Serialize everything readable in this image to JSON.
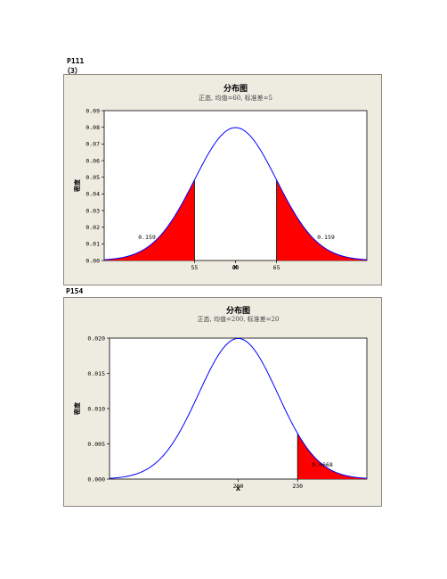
{
  "page": {
    "label_p111": "P111",
    "label_3": "（3）",
    "label_p154": "P154"
  },
  "colors": {
    "curve": "#0000ff",
    "fill": "#ff0000",
    "panel": "#eeebe1"
  },
  "chart_data": [
    {
      "type": "area",
      "title": "分布图",
      "subtitle": "正态, 均值=60, 标准差=5",
      "xlabel": "X",
      "ylabel": "密度",
      "mean": 60,
      "sd": 5,
      "xlim": [
        44,
        76
      ],
      "ylim": [
        0,
        0.09
      ],
      "yticks": [
        "0.00",
        "0.01",
        "0.02",
        "0.03",
        "0.04",
        "0.05",
        "0.06",
        "0.07",
        "0.08",
        "0.09"
      ],
      "ytick_values": [
        0,
        0.01,
        0.02,
        0.03,
        0.04,
        0.05,
        0.06,
        0.07,
        0.08,
        0.09
      ],
      "xticks": [
        "55",
        "60",
        "65"
      ],
      "xtick_values": [
        55,
        60,
        65
      ],
      "shaded": [
        {
          "from": 44,
          "to": 55,
          "label": "0.159"
        },
        {
          "from": 65,
          "to": 76,
          "label": "0.159"
        }
      ]
    },
    {
      "type": "area",
      "title": "分布图",
      "subtitle": "正态, 均值=200, 标准差=20",
      "xlabel": "X",
      "ylabel": "密度",
      "mean": 200,
      "sd": 20,
      "xlim": [
        135,
        265
      ],
      "ylim": [
        0,
        0.02
      ],
      "yticks": [
        "0.000",
        "0.005",
        "0.010",
        "0.015",
        "0.020"
      ],
      "ytick_values": [
        0,
        0.005,
        0.01,
        0.015,
        0.02
      ],
      "xticks": [
        "200",
        "230"
      ],
      "xtick_values": [
        200,
        230
      ],
      "shaded": [
        {
          "from": 230,
          "to": 265,
          "label": "0.0668"
        }
      ]
    }
  ]
}
